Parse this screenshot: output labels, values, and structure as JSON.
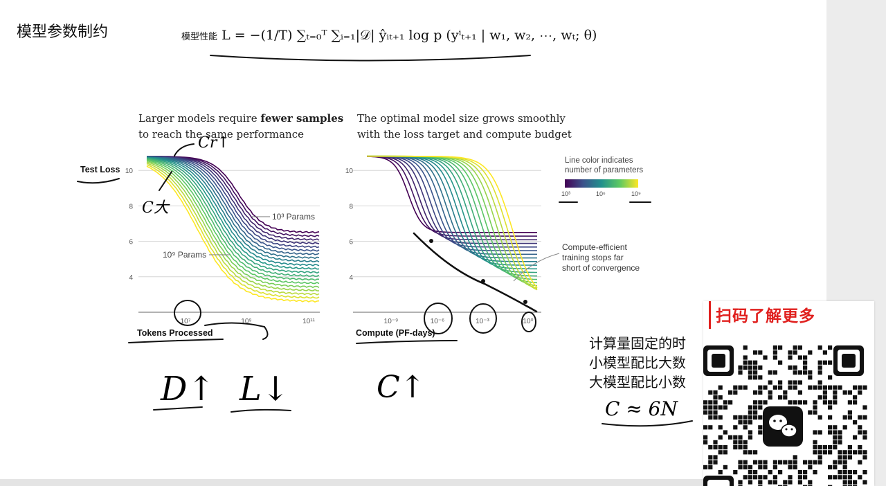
{
  "slide": {
    "title": "模型参数制约",
    "formula_label": "模型性能",
    "formula": "L = −(1/T) ∑ₜ₌₀ᵀ ∑ᵢ₌₁|𝒟| ŷᵢₜ₊₁ log p (yⁱₜ₊₁ | w₁, w₂, ⋯, wₜ; θ)"
  },
  "left_chart": {
    "caption_line1_pre": "Larger models require ",
    "caption_line1_bold": "fewer samples",
    "caption_line2": "to reach the same performance",
    "ylabel": "Test Loss",
    "xlabel": "Tokens Processed",
    "annotation_small": "10³ Params",
    "annotation_large": "10⁹ Params"
  },
  "right_chart": {
    "caption_line1": "The optimal model size grows smoothly",
    "caption_line2": "with the loss target and compute budget",
    "xlabel": "Compute (PF-days)",
    "legend_title_1": "Line color indicates",
    "legend_title_2": "number of parameters",
    "legend_ticks": [
      "10³",
      "10⁶",
      "10⁹"
    ],
    "note_1": "Compute-efficient",
    "note_2": "training stops far",
    "note_3": "short of convergence"
  },
  "chart_data": [
    {
      "type": "line",
      "ylabel": "Test Loss",
      "xlabel": "Tokens Processed",
      "xscale": "log",
      "xticks": [
        "10⁷",
        "10⁹",
        "10¹¹"
      ],
      "yticks": [
        "4",
        "6",
        "8",
        "10"
      ],
      "ylim": [
        2.5,
        11
      ],
      "grid": "horizontal",
      "colormap": [
        "#440154",
        "#3b528b",
        "#21918c",
        "#5ec962",
        "#fde725"
      ],
      "series_note": "parameter sizes 10³ to 10⁹",
      "start_loss": 10.8,
      "final_loss_min": 2.6,
      "final_loss_max": 6.5
    },
    {
      "type": "line",
      "xlabel": "Compute (PF-days)",
      "xscale": "log",
      "xticks": [
        "10⁻⁹",
        "10⁻⁶",
        "10⁻³",
        "10⁰"
      ],
      "yticks": [
        "4",
        "6",
        "8",
        "10"
      ],
      "ylim": [
        2.5,
        11
      ],
      "grid": "horizontal",
      "colormap": [
        "#440154",
        "#3b528b",
        "#21918c",
        "#5ec962",
        "#fde725"
      ],
      "start_loss": 10.8,
      "final_loss_min": 2.6,
      "final_loss_max": 6.5
    }
  ],
  "ink": {
    "crit": "Cr↑",
    "c_big": "C大",
    "d_up": "D↑",
    "l_down": "L↓",
    "c_up": "C↑"
  },
  "right_note": {
    "line1": "计算量固定的时",
    "line2": "小模型配比大数",
    "line3": "大模型配比小数",
    "formula": "C ≈ 6N"
  },
  "qr": {
    "title": "扫码了解更多",
    "center_icon": "wechat-icon"
  }
}
